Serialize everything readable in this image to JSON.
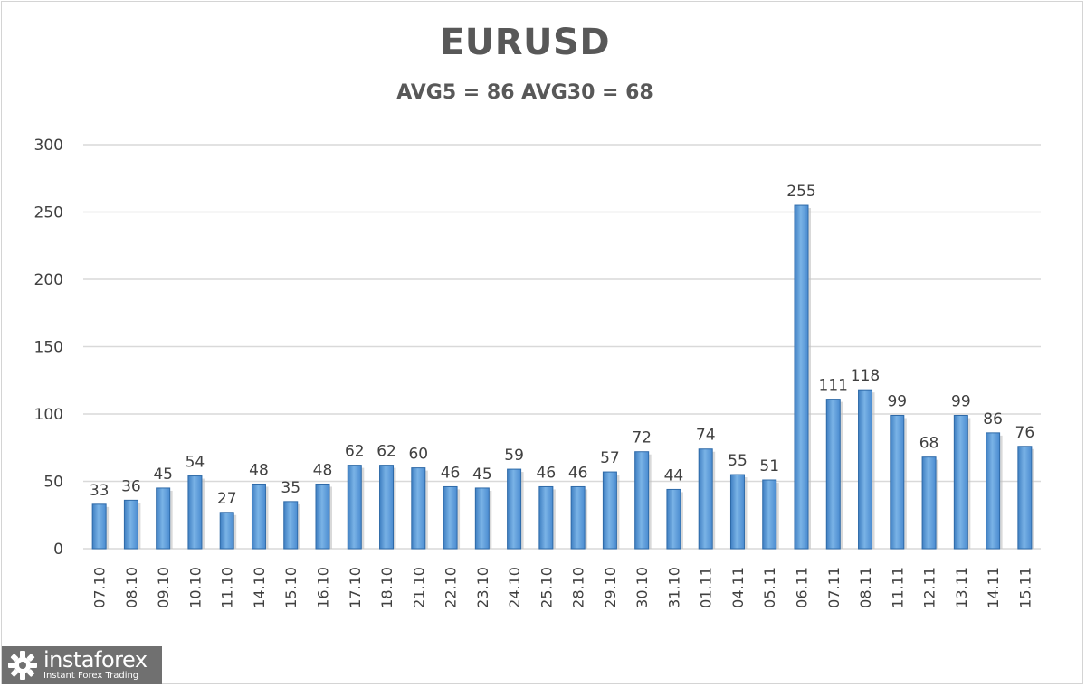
{
  "chart_data": {
    "type": "bar",
    "title": "EURUSD",
    "subtitle": "AVG5 = 86 AVG30 = 68",
    "categories": [
      "07.10",
      "08.10",
      "09.10",
      "10.10",
      "11.10",
      "14.10",
      "15.10",
      "16.10",
      "17.10",
      "18.10",
      "21.10",
      "22.10",
      "23.10",
      "24.10",
      "25.10",
      "28.10",
      "29.10",
      "30.10",
      "31.10",
      "01.11",
      "04.11",
      "05.11",
      "06.11",
      "07.11",
      "08.11",
      "11.11",
      "12.11",
      "13.11",
      "14.11",
      "15.11"
    ],
    "values": [
      33,
      36,
      45,
      54,
      27,
      48,
      35,
      48,
      62,
      62,
      60,
      46,
      45,
      59,
      46,
      46,
      57,
      72,
      44,
      74,
      55,
      51,
      255,
      111,
      118,
      99,
      68,
      99,
      86,
      76
    ],
    "ylim": [
      0,
      300
    ],
    "yticks": [
      0,
      50,
      100,
      150,
      200,
      250,
      300
    ],
    "grid": true,
    "legend": "none",
    "bar_color": "#5b9bd5",
    "bar_edge_color": "#2e6aa8"
  },
  "watermark": {
    "name": "instaforex",
    "tagline": "Instant Forex Trading"
  }
}
